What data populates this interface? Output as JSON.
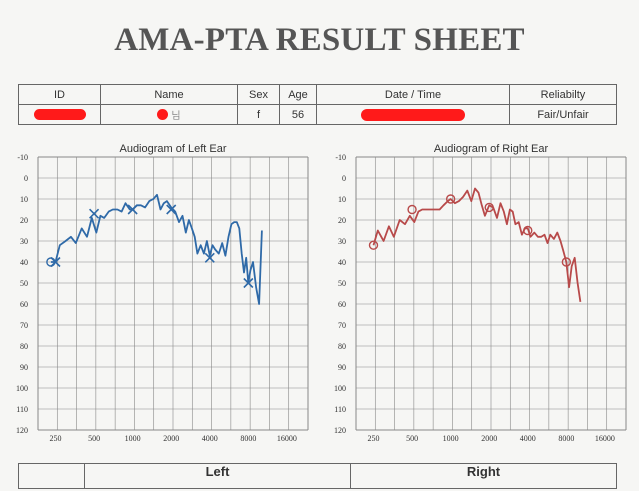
{
  "title": "AMA-PTA RESULT SHEET",
  "info": {
    "headers": [
      "ID",
      "Name",
      "Sex",
      "Age",
      "Date / Time",
      "Reliabilty"
    ],
    "sex": "f",
    "age": "56",
    "name_fragment": "님",
    "reliability": "Fair/Unfair"
  },
  "bottom": {
    "left": "Left",
    "right": "Right"
  },
  "colors": {
    "left_ear": "#2f6aa8",
    "right_ear": "#b84a4a",
    "redaction": "#ff1a1a"
  },
  "chart_data": [
    {
      "type": "line",
      "title": "Audiogram of Left Ear",
      "x_ticks": [
        "250",
        "500",
        "1000",
        "2000",
        "4000",
        "8000",
        "16000"
      ],
      "y_ticks": [
        "-10",
        "0",
        "10",
        "20",
        "30",
        "40",
        "50",
        "60",
        "70",
        "80",
        "90",
        "100",
        "110",
        "120"
      ],
      "ylim": [
        -10,
        120
      ],
      "y_inverted": true,
      "grid": true,
      "color": "#2f6aa8",
      "series": [
        {
          "x": [
            230,
            250,
            270,
            300,
            330,
            360,
            400,
            440,
            480,
            520,
            560,
            600,
            650,
            700,
            760,
            820,
            880,
            950,
            1000,
            1080,
            1160,
            1250,
            1350,
            1450,
            1550,
            1650,
            1750,
            1850,
            2000,
            2150,
            2300,
            2450,
            2600,
            2750,
            2900,
            3050,
            3200,
            3400,
            3600,
            3800,
            4000,
            4200,
            4400,
            4700,
            5000,
            5300,
            5600,
            5900,
            6200,
            6500,
            6800,
            7100,
            7400,
            7700,
            8000,
            8300,
            8700,
            9200,
            9700,
            10200
          ],
          "y": [
            40,
            40,
            32,
            30,
            28,
            31,
            24,
            28,
            19,
            26,
            18,
            19,
            16,
            15,
            15,
            16,
            12,
            15,
            15,
            13,
            13,
            14,
            11,
            10,
            8,
            15,
            12,
            11,
            14,
            16,
            21,
            18,
            26,
            20,
            24,
            28,
            36,
            32,
            36,
            30,
            37,
            32,
            34,
            36,
            31,
            37,
            28,
            22,
            21,
            21,
            24,
            36,
            45,
            38,
            50,
            44,
            40,
            52,
            60,
            25
          ]
        }
      ],
      "markers": [
        {
          "symbol": "circle",
          "x": 230,
          "y": 40
        },
        {
          "symbol": "x",
          "x": 250,
          "y": 40
        },
        {
          "symbol": "x",
          "x": 500,
          "y": 17
        },
        {
          "symbol": "x",
          "x": 1000,
          "y": 15
        },
        {
          "symbol": "x",
          "x": 2000,
          "y": 15
        },
        {
          "symbol": "x",
          "x": 4000,
          "y": 38
        },
        {
          "symbol": "x",
          "x": 8000,
          "y": 50
        }
      ]
    },
    {
      "type": "line",
      "title": "Audiogram of Right Ear",
      "x_ticks": [
        "250",
        "500",
        "1000",
        "2000",
        "4000",
        "8000",
        "16000"
      ],
      "y_ticks": [
        "-10",
        "0",
        "10",
        "20",
        "30",
        "40",
        "50",
        "60",
        "70",
        "80",
        "90",
        "100",
        "110",
        "120"
      ],
      "ylim": [
        -10,
        120
      ],
      "y_inverted": true,
      "grid": true,
      "color": "#b84a4a",
      "series": [
        {
          "x": [
            250,
            270,
            300,
            330,
            360,
            400,
            440,
            480,
            520,
            560,
            600,
            650,
            700,
            760,
            820,
            880,
            950,
            1000,
            1080,
            1160,
            1250,
            1350,
            1450,
            1550,
            1650,
            1750,
            1850,
            2000,
            2150,
            2300,
            2450,
            2600,
            2750,
            2900,
            3050,
            3200,
            3400,
            3600,
            3800,
            4000,
            4200,
            4500,
            4800,
            5100,
            5400,
            5700,
            6000,
            6400,
            6800,
            7200,
            7600,
            8000,
            8400,
            8800,
            9300,
            9800,
            10300
          ],
          "y": [
            32,
            25,
            30,
            23,
            28,
            20,
            22,
            18,
            21,
            16,
            15,
            15,
            15,
            15,
            15,
            13,
            11,
            10,
            12,
            11,
            9,
            6,
            11,
            5,
            7,
            13,
            18,
            13,
            14,
            19,
            12,
            16,
            22,
            15,
            16,
            22,
            21,
            27,
            24,
            24,
            28,
            26,
            28,
            28,
            27,
            31,
            27,
            29,
            26,
            30,
            35,
            40,
            52,
            42,
            38,
            50,
            59
          ]
        }
      ],
      "markers": [
        {
          "symbol": "circle",
          "x": 250,
          "y": 32
        },
        {
          "symbol": "circle",
          "x": 500,
          "y": 15
        },
        {
          "symbol": "circle",
          "x": 1000,
          "y": 10
        },
        {
          "symbol": "circle",
          "x": 2000,
          "y": 14
        },
        {
          "symbol": "circle",
          "x": 4000,
          "y": 25
        },
        {
          "symbol": "circle",
          "x": 8000,
          "y": 40
        }
      ]
    }
  ]
}
